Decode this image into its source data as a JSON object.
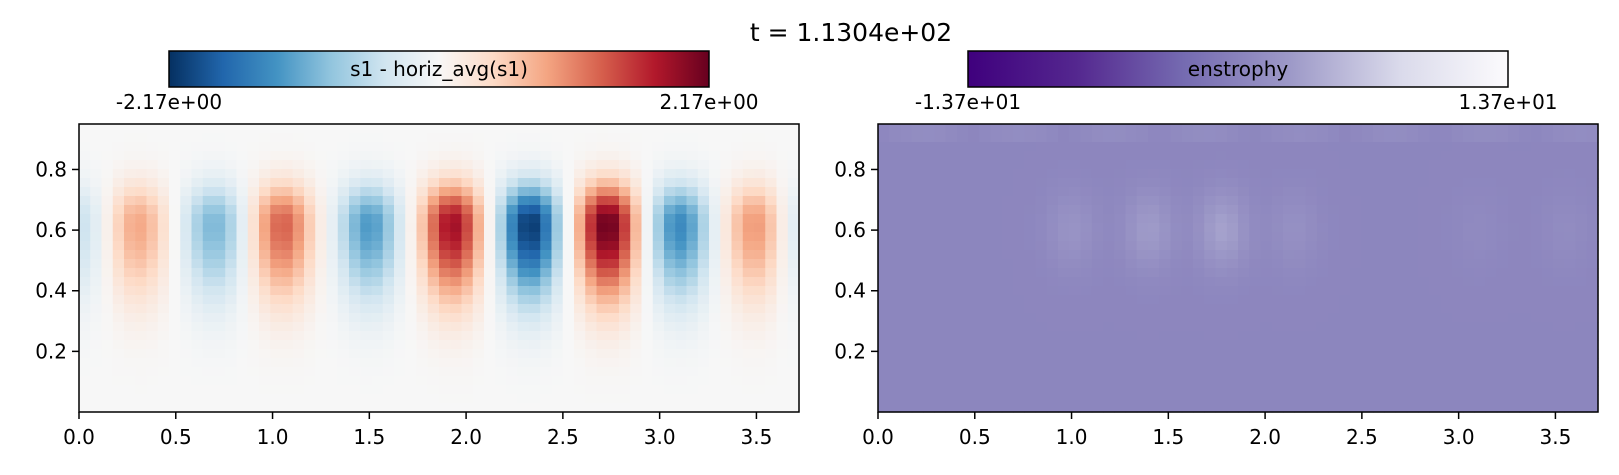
{
  "figure": {
    "title": "t = 1.1304e+02"
  },
  "chart_data": [
    {
      "type": "heatmap",
      "name": "s1-panel",
      "colorbar": {
        "label": "s1 - horiz_avg(s1)",
        "min_label": "-2.17e+00",
        "max_label": "2.17e+00",
        "min": -2.17,
        "max": 2.17,
        "colormap": "RdBu_r"
      },
      "xlim": [
        0,
        3.72
      ],
      "ylim": [
        0,
        0.95
      ],
      "xticks": [
        0.0,
        0.5,
        1.0,
        1.5,
        2.0,
        2.5,
        3.0,
        3.5
      ],
      "xtick_labels": [
        "0.0",
        "0.5",
        "1.0",
        "1.5",
        "2.0",
        "2.5",
        "3.0",
        "3.5"
      ],
      "yticks": [
        0.2,
        0.4,
        0.6,
        0.8
      ],
      "ytick_labels": [
        "0.2",
        "0.4",
        "0.6",
        "0.8"
      ],
      "field": {
        "nx": 64,
        "ny": 32,
        "pattern": "vertical rolls, alternating sign, peak near y=0.62",
        "rolls": [
          {
            "x": 0.0,
            "amp": -0.5
          },
          {
            "x": 0.3,
            "amp": 0.85
          },
          {
            "x": 0.7,
            "amp": -1.0
          },
          {
            "x": 1.05,
            "amp": 1.3
          },
          {
            "x": 1.5,
            "amp": -1.25
          },
          {
            "x": 1.93,
            "amp": 1.85
          },
          {
            "x": 2.33,
            "amp": -2.1
          },
          {
            "x": 2.73,
            "amp": 2.17
          },
          {
            "x": 3.1,
            "amp": -1.4
          },
          {
            "x": 3.5,
            "amp": 1.0
          },
          {
            "x": 3.72,
            "amp": -0.45
          }
        ]
      }
    },
    {
      "type": "heatmap",
      "name": "enstrophy-panel",
      "colorbar": {
        "label": "enstrophy",
        "min_label": "-1.37e+01",
        "max_label": "1.37e+01",
        "min": -13.7,
        "max": 13.7,
        "colormap": "Purples_r"
      },
      "xlim": [
        0,
        3.72
      ],
      "ylim": [
        0,
        0.95
      ],
      "xticks": [
        0.0,
        0.5,
        1.0,
        1.5,
        2.0,
        2.5,
        3.0,
        3.5
      ],
      "xtick_labels": [
        "0.0",
        "0.5",
        "1.0",
        "1.5",
        "2.0",
        "2.5",
        "3.0",
        "3.5"
      ],
      "yticks": [
        0.2,
        0.4,
        0.6,
        0.8
      ],
      "ytick_labels": [
        "0.2",
        "0.4",
        "0.6",
        "0.8"
      ],
      "field": {
        "nx": 64,
        "ny": 32,
        "background": 0.4,
        "pattern": "mostly near 0 with faint light blobs near y=0.6",
        "blobs": [
          {
            "x": 1.0,
            "amp": 1.6
          },
          {
            "x": 1.4,
            "amp": 2.4
          },
          {
            "x": 1.78,
            "amp": 3.0
          },
          {
            "x": 2.15,
            "amp": 1.2
          },
          {
            "x": 3.1,
            "amp": 0.5
          },
          {
            "x": 3.55,
            "amp": 0.7
          }
        ]
      }
    }
  ]
}
